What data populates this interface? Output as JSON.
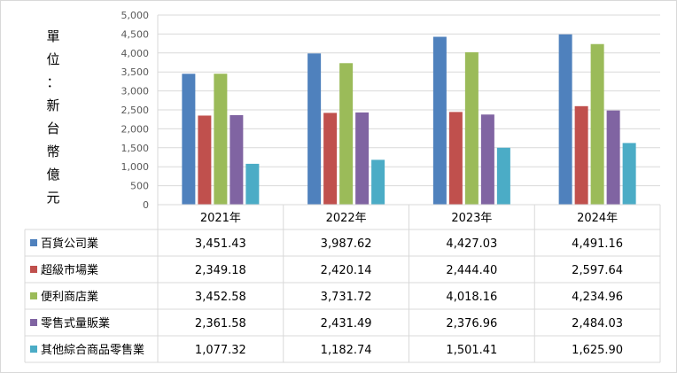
{
  "chart_data": {
    "type": "bar",
    "ylabel_chars": [
      "單",
      "位",
      "：",
      "新",
      "台",
      "幣",
      "億",
      "元"
    ],
    "categories": [
      "2021年",
      "2022年",
      "2023年",
      "2024年"
    ],
    "ylim": [
      0,
      5000
    ],
    "yticks": [
      "0",
      "500",
      "1,000",
      "1,500",
      "2,000",
      "2,500",
      "3,000",
      "3,500",
      "4,000",
      "4,500",
      "5,000"
    ],
    "grid": true,
    "legend": "data-table",
    "series": [
      {
        "name": "百貨公司業",
        "color": "#4f81bd",
        "values": [
          3451.43,
          3987.62,
          4427.03,
          4491.16
        ],
        "labels": [
          "3,451.43",
          "3,987.62",
          "4,427.03",
          "4,491.16"
        ]
      },
      {
        "name": "超級市場業",
        "color": "#c0504d",
        "values": [
          2349.18,
          2420.14,
          2444.4,
          2597.64
        ],
        "labels": [
          "2,349.18",
          "2,420.14",
          "2,444.40",
          "2,597.64"
        ]
      },
      {
        "name": "便利商店業",
        "color": "#9bbb59",
        "values": [
          3452.58,
          3731.72,
          4018.16,
          4234.96
        ],
        "labels": [
          "3,452.58",
          "3,731.72",
          "4,018.16",
          "4,234.96"
        ]
      },
      {
        "name": "零售式量販業",
        "color": "#8064a2",
        "values": [
          2361.58,
          2431.49,
          2376.96,
          2484.03
        ],
        "labels": [
          "2,361.58",
          "2,431.49",
          "2,376.96",
          "2,484.03"
        ]
      },
      {
        "name": "其他綜合商品零售業",
        "color": "#4bacc6",
        "values": [
          1077.32,
          1182.74,
          1501.41,
          1625.9
        ],
        "labels": [
          "1,077.32",
          "1,182.74",
          "1,501.41",
          "1,625.90"
        ]
      }
    ]
  }
}
